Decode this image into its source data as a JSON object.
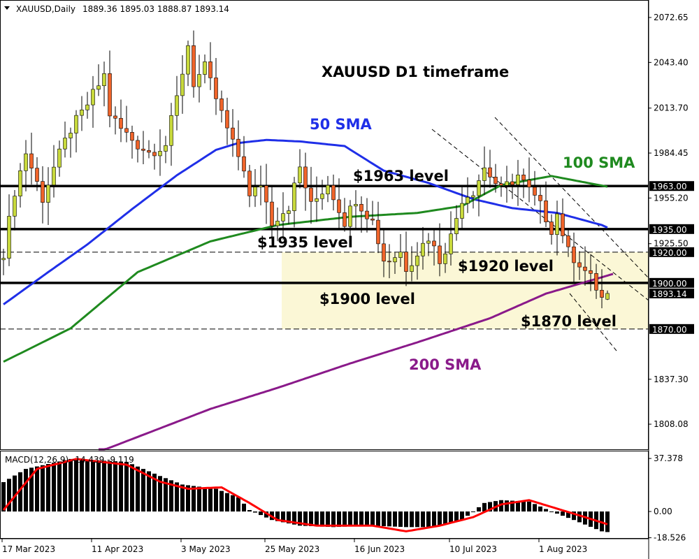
{
  "header": {
    "symbol": "XAUUSD,Daily",
    "ohlc": "1889.36 1895.03 1888.87 1893.14"
  },
  "macd_header": {
    "label": "MACD(12,26,9)",
    "values": "-14.439 -9.119"
  },
  "colors": {
    "bull": "#c8d93c",
    "bear": "#f0642a",
    "sma50": "#1f2fe8",
    "sma100": "#1f8a1f",
    "sma200": "#8a1a8a",
    "macd_signal": "#ff0000",
    "zone": "#fbf7d6"
  },
  "annotations": {
    "title": "XAUUSD D1 timeframe",
    "sma50": "50 SMA",
    "sma100": "100 SMA",
    "sma200": "200 SMA",
    "l1963": "$1963 level",
    "l1935": "$1935 level",
    "l1920": "$1920 level",
    "l1900": "$1900 level",
    "l1870": "$1870 level"
  },
  "chart_data": [
    {
      "type": "candlestick",
      "title": "XAUUSD,Daily",
      "ylim": [
        1790,
        2080
      ],
      "y_ticks": [
        "2072.65",
        "2043.40",
        "2013.70",
        "1984.45",
        "1955.20",
        "1925.50",
        "1837.30",
        "1808.08"
      ],
      "price_levels": [
        "1963.00",
        "1935.00",
        "1920.00",
        "1900.00",
        "1893.14",
        "1870.00"
      ],
      "x_labels": [
        {
          "bar": 0,
          "label": "17 Mar 2023"
        },
        {
          "bar": 16,
          "label": "11 Apr 2023"
        },
        {
          "bar": 32,
          "label": "3 May 2023"
        },
        {
          "bar": 47,
          "label": "25 May 2023"
        },
        {
          "bar": 63,
          "label": "16 Jun 2023"
        },
        {
          "bar": 80,
          "label": "10 Jul 2023"
        },
        {
          "bar": 96,
          "label": "1 Aug 2023"
        }
      ],
      "close_keypoints": [
        [
          0,
          1920
        ],
        [
          2,
          1960
        ],
        [
          4,
          1985
        ],
        [
          7,
          1955
        ],
        [
          9,
          1975
        ],
        [
          12,
          2000
        ],
        [
          14,
          2010
        ],
        [
          18,
          2035
        ],
        [
          19,
          2010
        ],
        [
          21,
          2000
        ],
        [
          24,
          1990
        ],
        [
          26,
          1985
        ],
        [
          29,
          1990
        ],
        [
          31,
          2020
        ],
        [
          33,
          2055
        ],
        [
          34,
          2030
        ],
        [
          36,
          2040
        ],
        [
          38,
          2020
        ],
        [
          41,
          1990
        ],
        [
          43,
          1975
        ],
        [
          44,
          1955
        ],
        [
          46,
          1965
        ],
        [
          48,
          1940
        ],
        [
          51,
          1950
        ],
        [
          53,
          1975
        ],
        [
          55,
          1950
        ],
        [
          58,
          1965
        ],
        [
          61,
          1940
        ],
        [
          63,
          1955
        ],
        [
          66,
          1940
        ],
        [
          68,
          1915
        ],
        [
          69,
          1915
        ],
        [
          71,
          1920
        ],
        [
          72,
          1910
        ],
        [
          74,
          1920
        ],
        [
          76,
          1930
        ],
        [
          78,
          1915
        ],
        [
          80,
          1930
        ],
        [
          82,
          1955
        ],
        [
          84,
          1960
        ],
        [
          86,
          1975
        ],
        [
          88,
          1965
        ],
        [
          89,
          1960
        ],
        [
          92,
          1970
        ],
        [
          94,
          1960
        ],
        [
          96,
          1950
        ],
        [
          98,
          1935
        ],
        [
          99,
          1945
        ],
        [
          101,
          1920
        ],
        [
          103,
          1913
        ],
        [
          105,
          1903
        ],
        [
          107,
          1890
        ],
        [
          108,
          1893.14
        ]
      ],
      "last_bar_ohlc": [
        1889.36,
        1895.03,
        1888.87,
        1893.14
      ],
      "series": [
        {
          "name": "50 SMA",
          "points": [
            [
              0,
              1886
            ],
            [
              8,
              1907
            ],
            [
              15,
              1925
            ],
            [
              23,
              1948
            ],
            [
              31,
              1970
            ],
            [
              38,
              1986.5
            ],
            [
              42,
              1991
            ],
            [
              47,
              1993
            ],
            [
              53,
              1992
            ],
            [
              61,
              1989
            ],
            [
              68,
              1973
            ],
            [
              76,
              1965
            ],
            [
              84,
              1954.5
            ],
            [
              91,
              1948.6
            ],
            [
              99,
              1945.5
            ],
            [
              107,
              1937.6
            ],
            [
              108,
              1936
            ]
          ]
        },
        {
          "name": "100 SMA",
          "points": [
            [
              0,
              1848.7
            ],
            [
              12,
              1870.4
            ],
            [
              24,
              1907
            ],
            [
              37,
              1927
            ],
            [
              49,
              1937.6
            ],
            [
              62,
              1943
            ],
            [
              74,
              1945.5
            ],
            [
              82,
              1950
            ],
            [
              89,
              1963.6
            ],
            [
              98,
              1969.5
            ],
            [
              108,
              1962.6
            ]
          ]
        },
        {
          "name": "200 SMA",
          "points": [
            [
              17,
              1790
            ],
            [
              37,
              1818
            ],
            [
              49,
              1831.7
            ],
            [
              62,
              1847.6
            ],
            [
              74,
              1861.3
            ],
            [
              87,
              1877
            ],
            [
              97,
              1893
            ],
            [
              109,
              1905.8
            ]
          ]
        }
      ],
      "levels_solid": [
        1963,
        1935,
        1900
      ],
      "levels_dashed": [
        1920,
        1870
      ],
      "zone": [
        1870,
        1920
      ]
    },
    {
      "type": "bar+line",
      "title": "MACD(12,26,9)",
      "ylim": [
        -22,
        40
      ],
      "y_ticks": [
        "37.378",
        "0.00",
        "-18.526"
      ],
      "histogram_keypoints": [
        [
          0,
          20.7
        ],
        [
          4,
          30
        ],
        [
          12,
          37
        ],
        [
          22,
          35
        ],
        [
          28,
          25
        ],
        [
          32,
          19
        ],
        [
          38,
          16
        ],
        [
          42,
          10
        ],
        [
          44,
          1
        ],
        [
          48,
          -6
        ],
        [
          53,
          -10
        ],
        [
          59,
          -11
        ],
        [
          66,
          -10
        ],
        [
          72,
          -11
        ],
        [
          77,
          -11
        ],
        [
          82,
          -6
        ],
        [
          86,
          6
        ],
        [
          89,
          8
        ],
        [
          94,
          7
        ],
        [
          98,
          0
        ],
        [
          102,
          -6
        ],
        [
          107,
          -14
        ],
        [
          108,
          -14.5
        ]
      ],
      "signal_keypoints": [
        [
          0,
          1
        ],
        [
          6,
          30
        ],
        [
          13,
          37
        ],
        [
          22,
          33
        ],
        [
          28,
          21
        ],
        [
          33,
          16
        ],
        [
          39,
          17
        ],
        [
          44,
          6
        ],
        [
          49,
          -6
        ],
        [
          56,
          -10
        ],
        [
          66,
          -10
        ],
        [
          72,
          -14
        ],
        [
          78,
          -10
        ],
        [
          84,
          -4
        ],
        [
          89,
          5
        ],
        [
          94,
          8
        ],
        [
          99,
          2
        ],
        [
          104,
          -4
        ],
        [
          108,
          -9
        ]
      ]
    }
  ]
}
